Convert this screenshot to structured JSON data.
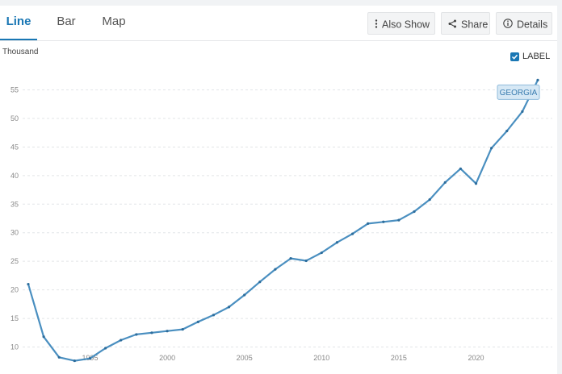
{
  "tabs": [
    {
      "label": "Line",
      "active": true
    },
    {
      "label": "Bar",
      "active": false
    },
    {
      "label": "Map",
      "active": false
    }
  ],
  "toolbar": {
    "also_show": {
      "label": "Also Show",
      "icon": "vertical-dots-icon"
    },
    "share": {
      "label": "Share",
      "icon": "share-icon"
    },
    "details": {
      "label": "Details",
      "icon": "info-circle-icon"
    }
  },
  "label_toggle": {
    "label": "LABEL",
    "checked": true
  },
  "colors": {
    "accent": "#1a77b4",
    "line": "#4a8fc0",
    "badge_bg": "#d6e8f5",
    "badge_border": "#8fbbdb"
  },
  "chart_data": {
    "type": "line",
    "ylabel": "Thousand",
    "xlim": [
      1991,
      2024
    ],
    "ylim": [
      5,
      60
    ],
    "x_ticks": [
      1995,
      2000,
      2005,
      2010,
      2015,
      2020
    ],
    "y_ticks": [
      10,
      15,
      20,
      25,
      30,
      35,
      40,
      45,
      50,
      55
    ],
    "grid": "horizontal-dashed",
    "series": [
      {
        "name": "GEORGIA",
        "x": [
          1991,
          1992,
          1993,
          1994,
          1995,
          1996,
          1997,
          1998,
          1999,
          2000,
          2001,
          2002,
          2003,
          2004,
          2005,
          2006,
          2007,
          2008,
          2009,
          2010,
          2011,
          2012,
          2013,
          2014,
          2015,
          2016,
          2017,
          2018,
          2019,
          2020,
          2021,
          2022,
          2023,
          2024
        ],
        "y": [
          21.0,
          11.8,
          8.2,
          7.6,
          8.0,
          9.8,
          11.2,
          12.2,
          12.5,
          12.8,
          13.1,
          14.4,
          15.6,
          17.0,
          19.1,
          21.4,
          23.6,
          25.5,
          25.1,
          26.5,
          28.3,
          29.8,
          31.6,
          31.9,
          32.2,
          33.7,
          35.8,
          38.8,
          41.2,
          38.6,
          44.8,
          47.8,
          51.2,
          56.7
        ]
      }
    ]
  }
}
